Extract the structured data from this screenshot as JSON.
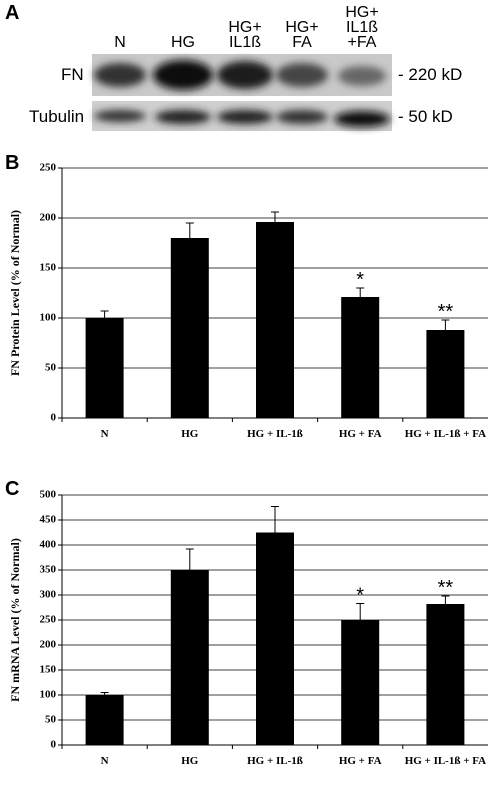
{
  "blot": {
    "panel_label": "A",
    "lanes": [
      "N",
      "HG",
      "HG+\nIL1ß",
      "HG+\nFA",
      "HG+\nIL1ß\n+FA"
    ],
    "rows": [
      {
        "name": "FN",
        "size": "- 220 kD"
      },
      {
        "name": "Tubulin",
        "size": "- 50 kD"
      }
    ]
  },
  "chart_data": [
    {
      "type": "bar",
      "panel_label": "B",
      "y_label": "FN Protein Level (% of Normal)",
      "categories": [
        "N",
        "HG",
        "HG + IL-1ß",
        "HG + FA",
        "HG + IL-1ß + FA"
      ],
      "values": [
        100,
        180,
        196,
        121,
        88
      ],
      "errors": [
        7,
        15,
        10,
        9,
        10
      ],
      "annotations": [
        null,
        null,
        null,
        "*",
        "**"
      ],
      "color": "#000000",
      "ylim": [
        0,
        250
      ],
      "yticks": [
        0,
        50,
        100,
        150,
        200,
        250
      ],
      "grid": true
    },
    {
      "type": "bar",
      "panel_label": "C",
      "y_label": "FN mRNA Level (% of Normal)",
      "categories": [
        "N",
        "HG",
        "HG + IL-1ß",
        "HG + FA",
        "HG + IL-1ß + FA"
      ],
      "values": [
        100,
        350,
        425,
        250,
        282
      ],
      "errors": [
        5,
        42,
        52,
        33,
        16
      ],
      "annotations": [
        null,
        null,
        null,
        "*",
        "**"
      ],
      "color": "#000000",
      "ylim": [
        0,
        500
      ],
      "yticks": [
        0,
        50,
        100,
        150,
        200,
        250,
        300,
        350,
        400,
        450,
        500
      ],
      "grid": true
    }
  ]
}
